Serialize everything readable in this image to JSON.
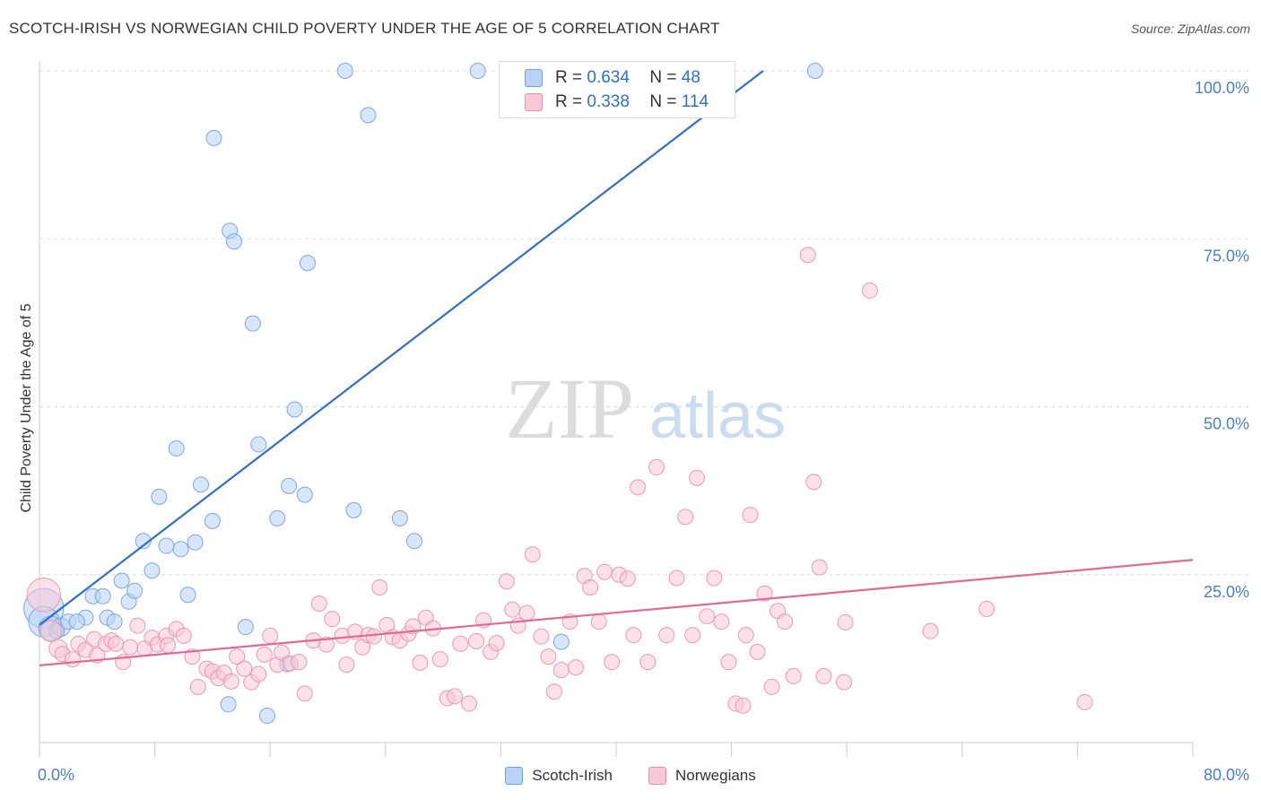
{
  "title": "SCOTCH-IRISH VS NORWEGIAN CHILD POVERTY UNDER THE AGE OF 5 CORRELATION CHART",
  "source": "Source: ZipAtlas.com",
  "watermark": {
    "zip": "ZIP",
    "atlas": "atlas"
  },
  "stats": [
    {
      "r_label": "R =",
      "r_value": "0.634",
      "n_label": "N =",
      "n_value": "48",
      "color": "#a9c8f0"
    },
    {
      "r_label": "R =",
      "r_value": "0.338",
      "n_label": "N =",
      "n_value": "114",
      "color": "#f6b8cb"
    }
  ],
  "chart_data": {
    "type": "scatter",
    "ylabel": "Child Poverty Under the Age of 5",
    "xlim": [
      0,
      80
    ],
    "ylim": [
      0,
      100
    ],
    "x_tick_labels": [
      "0.0%",
      "80.0%"
    ],
    "y_ticks": [
      25,
      50,
      75,
      100
    ],
    "y_tick_labels": [
      "25.0%",
      "50.0%",
      "75.0%",
      "100.0%"
    ],
    "grid": "horizontal dashed",
    "legend": "bottom-center",
    "series": [
      {
        "name": "Scotch-Irish",
        "color": "#6fa1e0",
        "fill": "#b7d2f5",
        "trend": {
          "x": [
            0,
            50.2
          ],
          "y": [
            17.5,
            100
          ]
        },
        "points": [
          [
            0.3,
            20.0,
            26
          ],
          [
            0.3,
            18.0,
            20
          ],
          [
            0.8,
            17.0,
            16
          ],
          [
            1.5,
            17.2,
            12
          ],
          [
            2.0,
            18.0,
            10
          ],
          [
            3.2,
            18.6,
            10
          ],
          [
            3.7,
            21.8,
            10
          ],
          [
            4.4,
            21.8,
            10
          ],
          [
            4.7,
            18.6,
            10
          ],
          [
            5.2,
            18.0,
            10
          ],
          [
            5.7,
            24.1,
            10
          ],
          [
            6.2,
            21.0,
            10
          ],
          [
            6.6,
            22.6,
            10
          ],
          [
            7.2,
            30.0,
            10
          ],
          [
            7.8,
            25.6,
            10
          ],
          [
            8.3,
            36.6,
            10
          ],
          [
            8.8,
            29.3,
            10
          ],
          [
            9.5,
            43.8,
            10
          ],
          [
            9.8,
            28.8,
            10
          ],
          [
            10.3,
            22.0,
            10
          ],
          [
            10.8,
            29.8,
            10
          ],
          [
            11.2,
            38.4,
            10
          ],
          [
            12.0,
            33.0,
            10
          ],
          [
            12.1,
            90.0,
            10
          ],
          [
            13.1,
            5.7,
            10
          ],
          [
            13.2,
            76.2,
            10
          ],
          [
            13.5,
            74.6,
            10
          ],
          [
            14.3,
            17.2,
            10
          ],
          [
            14.8,
            62.4,
            10
          ],
          [
            15.2,
            44.4,
            10
          ],
          [
            15.8,
            4.0,
            10
          ],
          [
            16.5,
            33.4,
            10
          ],
          [
            17.2,
            11.7,
            10
          ],
          [
            17.3,
            38.2,
            10
          ],
          [
            17.7,
            49.6,
            10
          ],
          [
            18.4,
            36.9,
            10
          ],
          [
            18.6,
            71.4,
            10
          ],
          [
            21.2,
            100.0,
            10
          ],
          [
            21.8,
            34.6,
            10
          ],
          [
            22.8,
            93.4,
            10
          ],
          [
            25.0,
            33.4,
            10
          ],
          [
            26.0,
            30.0,
            10
          ],
          [
            30.4,
            100.0,
            10
          ],
          [
            36.2,
            15.0,
            10
          ],
          [
            38.5,
            100.0,
            10
          ],
          [
            53.8,
            100.0,
            10
          ],
          [
            2.6,
            18.0,
            10
          ],
          [
            1.2,
            16.6,
            10
          ]
        ]
      },
      {
        "name": "Norwegians",
        "color": "#ec8fab",
        "fill": "#f9c8d7",
        "trend": {
          "x": [
            0,
            80
          ],
          "y": [
            11.5,
            27.2
          ]
        },
        "points": [
          [
            0.3,
            22.0,
            22
          ],
          [
            0.8,
            16.6,
            14
          ],
          [
            1.3,
            14.0,
            12
          ],
          [
            1.6,
            13.2,
            10
          ],
          [
            2.3,
            12.4,
            10
          ],
          [
            2.7,
            14.7,
            10
          ],
          [
            3.2,
            13.8,
            10
          ],
          [
            3.8,
            15.4,
            10
          ],
          [
            4.0,
            13.0,
            10
          ],
          [
            4.6,
            14.7,
            10
          ],
          [
            5.0,
            15.2,
            10
          ],
          [
            5.3,
            14.7,
            10
          ],
          [
            5.8,
            12.0,
            10
          ],
          [
            6.3,
            14.2,
            10
          ],
          [
            6.8,
            17.4,
            10
          ],
          [
            7.3,
            14.0,
            10
          ],
          [
            7.8,
            15.6,
            10
          ],
          [
            8.2,
            14.6,
            10
          ],
          [
            8.8,
            15.9,
            10
          ],
          [
            8.9,
            14.5,
            10
          ],
          [
            9.5,
            16.9,
            10
          ],
          [
            10.0,
            15.9,
            10
          ],
          [
            10.6,
            12.8,
            10
          ],
          [
            11.0,
            8.3,
            10
          ],
          [
            11.6,
            11.0,
            10
          ],
          [
            12.0,
            10.6,
            10
          ],
          [
            12.4,
            9.6,
            10
          ],
          [
            12.8,
            10.4,
            10
          ],
          [
            13.3,
            9.1,
            10
          ],
          [
            13.7,
            12.8,
            10
          ],
          [
            14.2,
            11.0,
            10
          ],
          [
            14.7,
            9.0,
            10
          ],
          [
            15.2,
            10.2,
            10
          ],
          [
            15.6,
            13.1,
            10
          ],
          [
            16.0,
            15.9,
            10
          ],
          [
            16.5,
            11.6,
            10
          ],
          [
            16.8,
            13.4,
            10
          ],
          [
            17.4,
            11.8,
            10
          ],
          [
            18.0,
            12.0,
            10
          ],
          [
            18.4,
            7.3,
            10
          ],
          [
            19.0,
            15.2,
            10
          ],
          [
            19.4,
            20.7,
            10
          ],
          [
            19.9,
            14.6,
            10
          ],
          [
            20.3,
            18.4,
            10
          ],
          [
            21.0,
            15.9,
            10
          ],
          [
            21.3,
            11.6,
            10
          ],
          [
            21.9,
            16.5,
            10
          ],
          [
            22.4,
            14.2,
            10
          ],
          [
            22.8,
            16.0,
            10
          ],
          [
            23.2,
            15.8,
            10
          ],
          [
            23.6,
            23.1,
            10
          ],
          [
            24.1,
            17.5,
            10
          ],
          [
            24.5,
            15.7,
            10
          ],
          [
            25.0,
            15.2,
            10
          ],
          [
            25.6,
            16.2,
            10
          ],
          [
            25.9,
            17.3,
            10
          ],
          [
            26.4,
            11.9,
            10
          ],
          [
            26.8,
            18.6,
            10
          ],
          [
            27.3,
            17.0,
            10
          ],
          [
            27.8,
            12.4,
            10
          ],
          [
            28.3,
            6.6,
            10
          ],
          [
            28.8,
            6.9,
            10
          ],
          [
            29.2,
            14.7,
            10
          ],
          [
            29.8,
            5.8,
            10
          ],
          [
            30.3,
            15.1,
            10
          ],
          [
            30.8,
            18.2,
            10
          ],
          [
            31.3,
            13.5,
            10
          ],
          [
            31.7,
            14.8,
            10
          ],
          [
            32.4,
            24.0,
            10
          ],
          [
            32.8,
            19.8,
            10
          ],
          [
            33.2,
            17.4,
            10
          ],
          [
            33.8,
            19.3,
            10
          ],
          [
            34.2,
            28.0,
            10
          ],
          [
            34.8,
            15.8,
            10
          ],
          [
            35.3,
            12.8,
            10
          ],
          [
            35.7,
            7.6,
            10
          ],
          [
            36.2,
            10.8,
            10
          ],
          [
            36.8,
            18.0,
            10
          ],
          [
            37.2,
            11.2,
            10
          ],
          [
            37.8,
            24.8,
            10
          ],
          [
            38.2,
            23.1,
            10
          ],
          [
            38.8,
            18.0,
            10
          ],
          [
            39.2,
            25.4,
            10
          ],
          [
            39.7,
            12.0,
            10
          ],
          [
            40.2,
            25.0,
            10
          ],
          [
            40.8,
            24.4,
            10
          ],
          [
            41.2,
            16.0,
            10
          ],
          [
            41.5,
            38.0,
            10
          ],
          [
            42.2,
            12.0,
            10
          ],
          [
            42.8,
            41.0,
            10
          ],
          [
            43.5,
            16.0,
            10
          ],
          [
            44.2,
            24.5,
            10
          ],
          [
            44.8,
            33.6,
            10
          ],
          [
            45.3,
            16.0,
            10
          ],
          [
            45.6,
            39.4,
            10
          ],
          [
            46.3,
            18.8,
            10
          ],
          [
            46.8,
            24.5,
            10
          ],
          [
            47.3,
            18.0,
            10
          ],
          [
            47.8,
            12.0,
            10
          ],
          [
            48.3,
            5.8,
            10
          ],
          [
            48.8,
            5.5,
            10
          ],
          [
            49.0,
            16.0,
            10
          ],
          [
            49.3,
            33.9,
            10
          ],
          [
            49.8,
            13.5,
            10
          ],
          [
            50.3,
            22.2,
            10
          ],
          [
            50.8,
            8.3,
            10
          ],
          [
            51.2,
            19.6,
            10
          ],
          [
            51.7,
            18.0,
            10
          ],
          [
            52.3,
            9.9,
            10
          ],
          [
            53.3,
            72.6,
            10
          ],
          [
            53.7,
            38.8,
            10
          ],
          [
            54.1,
            26.1,
            10
          ],
          [
            54.4,
            9.9,
            10
          ],
          [
            55.8,
            9.0,
            10
          ],
          [
            55.9,
            17.9,
            10
          ],
          [
            57.6,
            67.3,
            10
          ],
          [
            61.8,
            16.6,
            10
          ],
          [
            65.7,
            19.9,
            10
          ],
          [
            72.5,
            6.0,
            10
          ]
        ]
      }
    ]
  }
}
